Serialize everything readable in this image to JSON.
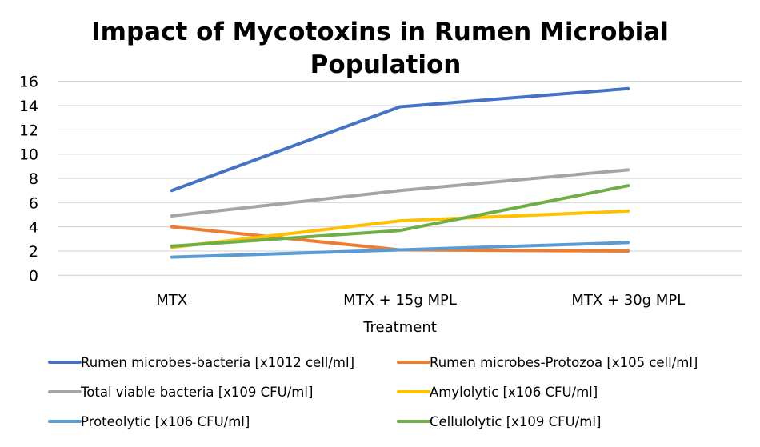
{
  "chart_data": {
    "type": "line",
    "title": [
      "Impact of Mycotoxins in Rumen Microbial",
      "Population"
    ],
    "xlabel": "Treatment",
    "ylabel": "",
    "categories": [
      "MTX",
      "MTX + 15g MPL",
      "MTX + 30g MPL"
    ],
    "ylim": [
      0,
      16
    ],
    "yticks": [
      0,
      2,
      4,
      6,
      8,
      10,
      12,
      14,
      16
    ],
    "grid": true,
    "legend_position": "bottom",
    "series": [
      {
        "name": "Rumen microbes-bacteria [x1012 cell/ml]",
        "color": "#4472c4",
        "values": [
          7.0,
          13.9,
          15.4
        ]
      },
      {
        "name": "Rumen microbes-Protozoa [x105 cell/ml]",
        "color": "#ed7d31",
        "values": [
          4.0,
          2.1,
          2.0
        ]
      },
      {
        "name": "Total viable bacteria [x109 CFU/ml]",
        "color": "#a5a5a5",
        "values": [
          4.9,
          7.0,
          8.7
        ]
      },
      {
        "name": "Amylolytic [x106 CFU/ml]",
        "color": "#ffc000",
        "values": [
          2.3,
          4.5,
          5.3
        ]
      },
      {
        "name": "Proteolytic [x106 CFU/ml]",
        "color": "#5b9bd5",
        "values": [
          1.5,
          2.1,
          2.7
        ]
      },
      {
        "name": "Cellulolytic [x109 CFU/ml]",
        "color": "#70ad47",
        "values": [
          2.4,
          3.7,
          7.4
        ]
      }
    ]
  }
}
